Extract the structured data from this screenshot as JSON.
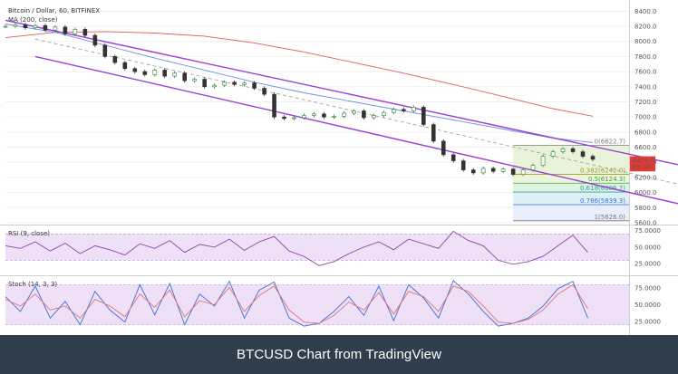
{
  "caption": "BTCUSD Chart from TradingView",
  "chart_data": [
    {
      "type": "line",
      "title": "Bitcoin / Dollar, 60, BITFINEX",
      "indicator_label": "MA (200, close)",
      "ylim": [
        5600,
        8500
      ],
      "y_ticks": [
        "8400.0",
        "8200.0",
        "8000.0",
        "7800.0",
        "7600.0",
        "7400.0",
        "7200.0",
        "7000.0",
        "6800.0",
        "6600.0",
        "6400.0",
        "6200.0",
        "6000.0",
        "5800.0",
        "5600.0"
      ],
      "y_tick_values": [
        8400,
        8200,
        8000,
        7800,
        7600,
        7400,
        7200,
        7000,
        6800,
        6600,
        6400,
        6200,
        6000,
        5800,
        5600
      ],
      "x_range": [
        0,
        118
      ],
      "price_series": {
        "x": [
          0,
          2,
          4,
          6,
          8,
          10,
          12,
          14,
          16,
          18,
          20,
          22,
          24,
          26,
          28,
          30,
          32,
          34,
          36,
          38,
          40,
          42,
          44,
          46,
          48,
          50,
          52,
          54,
          56,
          58,
          60,
          62,
          64,
          66,
          68,
          70,
          72,
          74,
          76,
          78,
          80,
          82,
          84,
          86,
          88,
          90,
          92,
          94,
          96,
          98,
          100,
          102,
          104,
          106,
          108,
          110,
          112,
          114,
          116,
          118
        ],
        "y": [
          8200,
          8220,
          8180,
          8210,
          8150,
          8190,
          8100,
          8160,
          8080,
          7950,
          7800,
          7720,
          7640,
          7600,
          7560,
          7620,
          7540,
          7580,
          7480,
          7500,
          7400,
          7420,
          7460,
          7430,
          7450,
          7380,
          7300,
          7000,
          6980,
          6990,
          7020,
          7040,
          7000,
          7010,
          7050,
          7080,
          6990,
          7020,
          7060,
          7100,
          7080,
          7130,
          6900,
          6680,
          6500,
          6420,
          6300,
          6260,
          6320,
          6280,
          6310,
          6240,
          6300,
          6360,
          6480,
          6540,
          6580,
          6540,
          6480,
          6440
        ]
      },
      "ma_blue": {
        "x": [
          0,
          10,
          20,
          30,
          40,
          50,
          60,
          70,
          80,
          90,
          100,
          110,
          118
        ],
        "y": [
          8230,
          8120,
          7950,
          7780,
          7620,
          7460,
          7320,
          7200,
          7080,
          6960,
          6840,
          6720,
          6660
        ]
      },
      "ma_red": {
        "x": [
          0,
          10,
          20,
          30,
          40,
          50,
          60,
          70,
          80,
          90,
          100,
          110,
          118
        ],
        "y": [
          8050,
          8120,
          8130,
          8110,
          8070,
          7980,
          7860,
          7720,
          7580,
          7430,
          7270,
          7110,
          7010
        ]
      },
      "channel_upper": {
        "x": [
          0,
          140
        ],
        "y": [
          8280,
          6300
        ]
      },
      "channel_lower": {
        "x": [
          6,
          140
        ],
        "y": [
          7800,
          5780
        ]
      },
      "midline": {
        "x": [
          6,
          140
        ],
        "y": [
          8030,
          6040
        ]
      },
      "fib_levels": [
        {
          "label": "0(6622.7)",
          "value": 6622.7,
          "color": "#7a7a7a",
          "fill": "#e6f2d6"
        },
        {
          "label": "0.382(6242.0)",
          "value": 6242.0,
          "color": "#a0a020",
          "fill": "#eaf4d9"
        },
        {
          "label": "0.5(6124.3)",
          "value": 6124.3,
          "color": "#3ea33e",
          "fill": "#dcefdc"
        },
        {
          "label": "0.618(6006.7)",
          "value": 6006.7,
          "color": "#2ca6a6",
          "fill": "#d9eef2"
        },
        {
          "label": "0.786(5839.3)",
          "value": 5839.3,
          "color": "#3a6fd8",
          "fill": "#e6ecfa"
        },
        {
          "label": "1(5626.0)",
          "value": 5626.0,
          "color": "#7a7a7a",
          "fill": "#eeeeee"
        }
      ],
      "fib_x_start": 102,
      "price_tags": [
        {
          "text": "6420.0",
          "value": 6420,
          "color": "#e53935"
        },
        {
          "text": "05:30",
          "value": 6340,
          "color": "#e53935"
        }
      ]
    },
    {
      "type": "line",
      "title": "RSI (9, close)",
      "ylim": [
        10,
        80
      ],
      "y_ticks": [
        "75.0000",
        "50.0000",
        "25.0000"
      ],
      "y_tick_values": [
        75,
        50,
        25
      ],
      "band": [
        30,
        70
      ],
      "x": [
        0,
        3,
        6,
        9,
        12,
        15,
        18,
        21,
        24,
        27,
        30,
        33,
        36,
        39,
        42,
        45,
        48,
        51,
        54,
        57,
        60,
        63,
        66,
        69,
        72,
        75,
        78,
        81,
        84,
        87,
        90,
        93,
        96,
        99,
        102,
        105,
        108,
        111,
        114,
        117
      ],
      "values": [
        52,
        48,
        58,
        44,
        56,
        40,
        52,
        46,
        38,
        55,
        48,
        60,
        42,
        54,
        50,
        62,
        45,
        58,
        66,
        44,
        36,
        22,
        28,
        40,
        50,
        58,
        46,
        62,
        55,
        48,
        74,
        60,
        52,
        30,
        24,
        28,
        36,
        52,
        68,
        42
      ]
    },
    {
      "type": "line",
      "title": "Stoch (14, 3, 3)",
      "ylim": [
        10,
        90
      ],
      "y_ticks": [
        "75.0000",
        "50.0000",
        "25.0000"
      ],
      "y_tick_values": [
        75,
        50,
        25
      ],
      "band": [
        20,
        80
      ],
      "series": [
        {
          "color": "#3f6fd6",
          "x": [
            0,
            3,
            6,
            9,
            12,
            15,
            18,
            21,
            24,
            27,
            30,
            33,
            36,
            39,
            42,
            45,
            48,
            51,
            54,
            57,
            60,
            63,
            66,
            69,
            72,
            75,
            78,
            81,
            84,
            87,
            90,
            93,
            96,
            99,
            102,
            105,
            108,
            111,
            114,
            117
          ],
          "values": [
            62,
            40,
            78,
            30,
            55,
            20,
            70,
            42,
            24,
            80,
            35,
            82,
            20,
            66,
            48,
            85,
            30,
            72,
            84,
            30,
            18,
            22,
            40,
            62,
            34,
            78,
            26,
            80,
            60,
            30,
            86,
            66,
            40,
            18,
            22,
            30,
            48,
            74,
            85,
            30
          ]
        },
        {
          "color": "#e57373",
          "x": [
            0,
            3,
            6,
            9,
            12,
            15,
            18,
            21,
            24,
            27,
            30,
            33,
            36,
            39,
            42,
            45,
            48,
            51,
            54,
            57,
            60,
            63,
            66,
            69,
            72,
            75,
            78,
            81,
            84,
            87,
            90,
            93,
            96,
            99,
            102,
            105,
            108,
            111,
            114,
            117
          ],
          "values": [
            58,
            48,
            66,
            42,
            48,
            30,
            58,
            48,
            32,
            66,
            46,
            72,
            32,
            56,
            50,
            76,
            40,
            64,
            78,
            42,
            24,
            22,
            34,
            54,
            42,
            68,
            36,
            70,
            62,
            40,
            78,
            70,
            48,
            24,
            22,
            28,
            42,
            66,
            80,
            44
          ]
        }
      ]
    }
  ]
}
